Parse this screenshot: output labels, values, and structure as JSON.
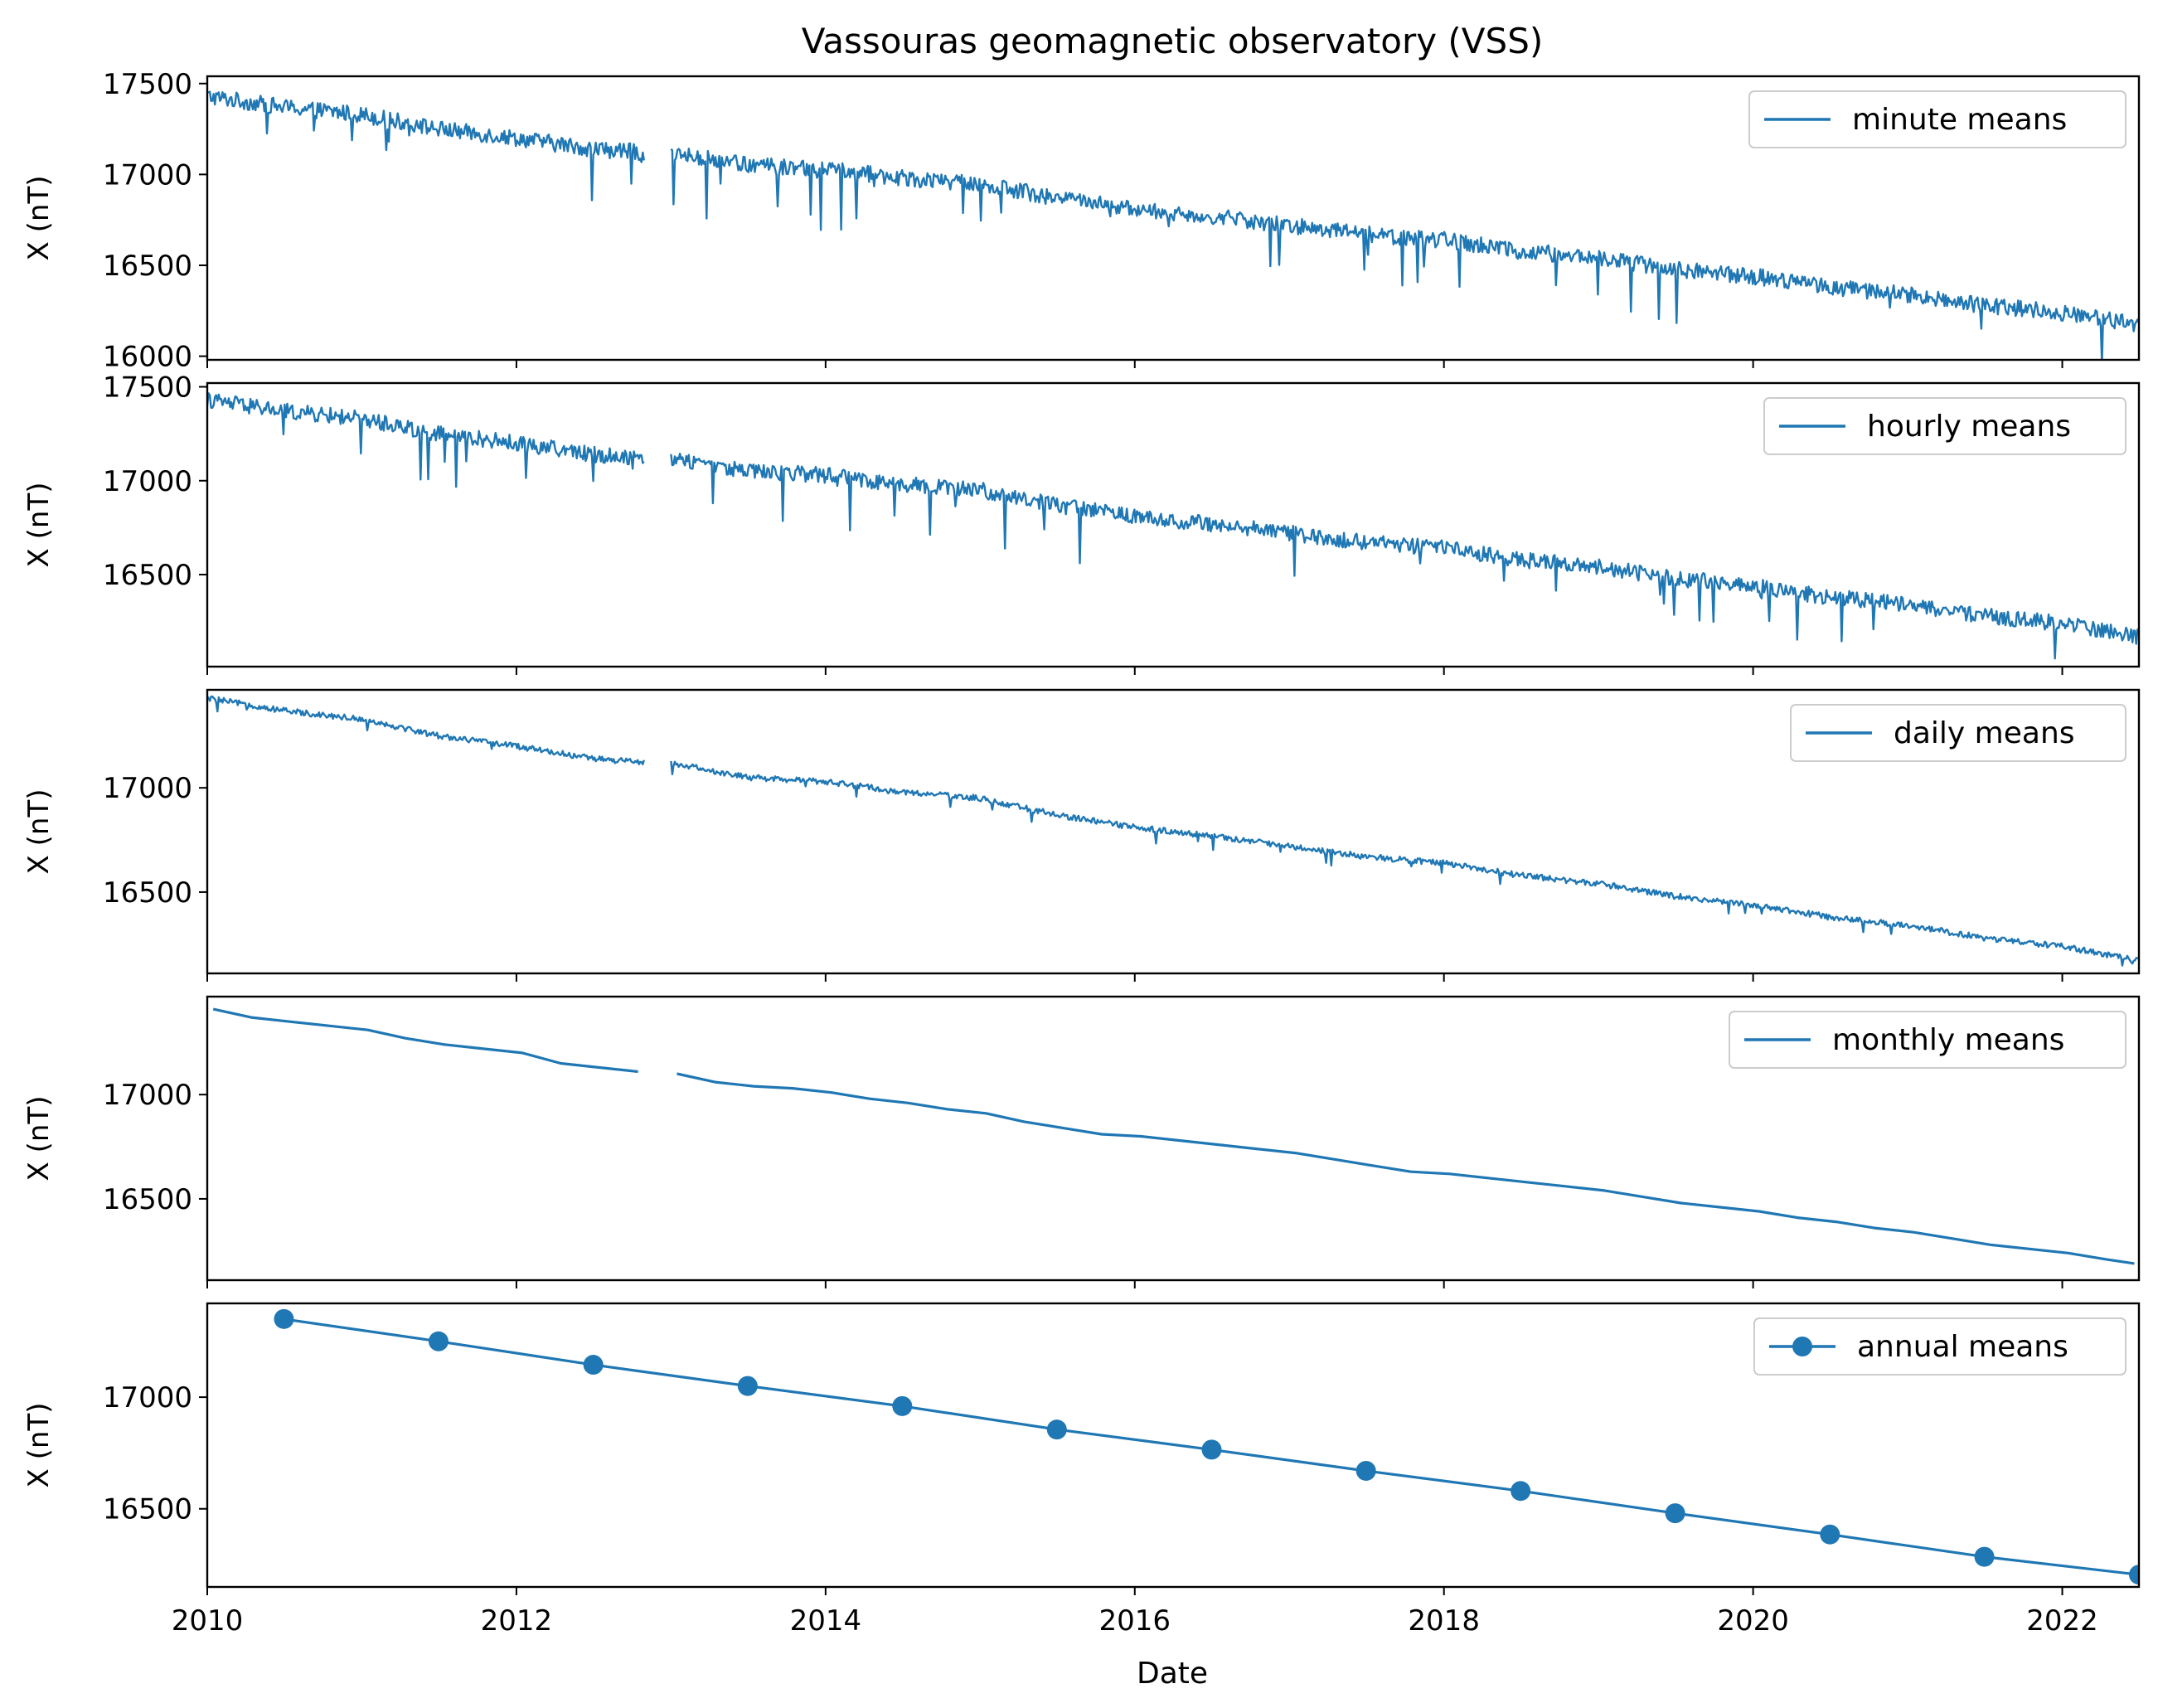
{
  "figure": {
    "title": "Vassouras geomagnetic observatory (VSS)",
    "xlabel": "Date",
    "x_tick_labels": [
      "2010",
      "2012",
      "2014",
      "2016",
      "2018",
      "2020",
      "2022"
    ],
    "line_color": "#1f77b4"
  },
  "chart_data": [
    {
      "type": "line",
      "panel": "minute",
      "ylabel": "X (nT)",
      "xlim": [
        "2010-01-01",
        "2022-07-01"
      ],
      "ylim": [
        15980,
        17540
      ],
      "yticks": [
        16000,
        16500,
        17000,
        17500
      ],
      "legend": {
        "label": "minute means",
        "placement": "top-right",
        "marker": false
      },
      "noise": {
        "amp": 45,
        "spike": 330,
        "prob": 0.035,
        "step_days": 3
      },
      "series": [
        {
          "name": "minute means",
          "segments": [
            {
              "x": [
                "2010-01-01",
                "2010-07-01",
                "2011-01-01",
                "2011-07-01",
                "2012-01-01",
                "2012-07-01",
                "2012-11-01"
              ],
              "y": [
                17430,
                17370,
                17330,
                17250,
                17200,
                17140,
                17120
              ]
            },
            {
              "x": [
                "2013-01-01",
                "2013-07-01",
                "2014-01-01",
                "2014-07-01",
                "2015-01-01",
                "2015-07-01",
                "2016-01-01",
                "2016-07-01",
                "2017-01-01",
                "2017-07-01",
                "2018-01-01",
                "2018-07-01",
                "2019-01-01",
                "2019-07-01",
                "2020-01-01",
                "2020-07-01",
                "2021-01-01",
                "2021-07-01",
                "2022-01-01",
                "2022-07-01"
              ],
              "y": [
                17120,
                17050,
                17030,
                16980,
                16950,
                16870,
                16810,
                16770,
                16720,
                16670,
                16640,
                16580,
                16540,
                16480,
                16440,
                16380,
                16340,
                16280,
                16240,
                16170
              ]
            }
          ]
        }
      ]
    },
    {
      "type": "line",
      "panel": "hourly",
      "ylabel": "X (nT)",
      "xlim": [
        "2010-01-01",
        "2022-07-01"
      ],
      "ylim": [
        16010,
        17520
      ],
      "yticks": [
        16500,
        17000,
        17500
      ],
      "legend": {
        "label": "hourly means",
        "placement": "top-right",
        "marker": false
      },
      "noise": {
        "amp": 42,
        "spike": 310,
        "prob": 0.035,
        "step_days": 3
      },
      "series": [
        {
          "name": "hourly means",
          "segments": [
            {
              "x": [
                "2010-01-01",
                "2010-07-01",
                "2011-01-01",
                "2011-07-01",
                "2012-01-01",
                "2012-07-01",
                "2012-11-01"
              ],
              "y": [
                17430,
                17370,
                17330,
                17250,
                17200,
                17140,
                17120
              ]
            },
            {
              "x": [
                "2013-01-01",
                "2013-07-01",
                "2014-01-01",
                "2014-07-01",
                "2015-01-01",
                "2015-07-01",
                "2016-01-01",
                "2016-07-01",
                "2017-01-01",
                "2017-07-01",
                "2018-01-01",
                "2018-07-01",
                "2019-01-01",
                "2019-07-01",
                "2020-01-01",
                "2020-07-01",
                "2021-01-01",
                "2021-07-01",
                "2022-01-01",
                "2022-07-01"
              ],
              "y": [
                17120,
                17050,
                17030,
                16980,
                16950,
                16870,
                16810,
                16770,
                16720,
                16670,
                16640,
                16580,
                16540,
                16480,
                16440,
                16380,
                16340,
                16280,
                16240,
                16170
              ]
            }
          ]
        }
      ]
    },
    {
      "type": "line",
      "panel": "daily",
      "ylabel": "X (nT)",
      "xlim": [
        "2010-01-01",
        "2022-07-01"
      ],
      "ylim": [
        16110,
        17470
      ],
      "yticks": [
        16500,
        17000
      ],
      "legend": {
        "label": "daily means",
        "placement": "top-right",
        "marker": false
      },
      "noise": {
        "amp": 14,
        "spike": 70,
        "prob": 0.03,
        "step_days": 3
      },
      "series": [
        {
          "name": "daily means",
          "segments": [
            {
              "x": [
                "2010-01-01",
                "2010-07-01",
                "2011-01-01",
                "2011-07-01",
                "2012-01-01",
                "2012-07-01",
                "2012-11-01"
              ],
              "y": [
                17430,
                17370,
                17330,
                17250,
                17200,
                17140,
                17120
              ]
            },
            {
              "x": [
                "2013-01-01",
                "2013-07-01",
                "2014-01-01",
                "2014-07-01",
                "2015-01-01",
                "2015-07-01",
                "2016-01-01",
                "2016-07-01",
                "2017-01-01",
                "2017-07-01",
                "2018-01-01",
                "2018-07-01",
                "2019-01-01",
                "2019-07-01",
                "2020-01-01",
                "2020-07-01",
                "2021-01-01",
                "2021-07-01",
                "2022-01-01",
                "2022-07-01"
              ],
              "y": [
                17120,
                17050,
                17030,
                16980,
                16950,
                16870,
                16810,
                16770,
                16720,
                16670,
                16640,
                16580,
                16540,
                16480,
                16440,
                16380,
                16340,
                16280,
                16240,
                16170
              ]
            }
          ]
        }
      ]
    },
    {
      "type": "line",
      "panel": "monthly",
      "ylabel": "X (nT)",
      "xlim": [
        "2010-01-01",
        "2022-07-01"
      ],
      "ylim": [
        16110,
        17470
      ],
      "yticks": [
        16500,
        17000
      ],
      "legend": {
        "label": "monthly means",
        "placement": "top-right",
        "marker": false
      },
      "series": [
        {
          "name": "monthly means",
          "segments": [
            {
              "x": [
                "2010-01-15",
                "2010-04-15",
                "2010-07-15",
                "2010-10-15",
                "2011-01-15",
                "2011-04-15",
                "2011-07-15",
                "2011-10-15",
                "2012-01-15",
                "2012-04-15",
                "2012-07-15",
                "2012-10-15"
              ],
              "y": [
                17410,
                17370,
                17350,
                17330,
                17310,
                17270,
                17240,
                17220,
                17200,
                17150,
                17130,
                17110
              ]
            },
            {
              "x": [
                "2013-01-15",
                "2013-04-15",
                "2013-07-15",
                "2013-10-15",
                "2014-01-15",
                "2014-04-15",
                "2014-07-15",
                "2014-10-15",
                "2015-01-15",
                "2015-04-15",
                "2015-07-15",
                "2015-10-15",
                "2016-01-15",
                "2016-04-15",
                "2016-07-15",
                "2016-10-15",
                "2017-01-15",
                "2017-04-15",
                "2017-07-15",
                "2017-10-15",
                "2018-01-15",
                "2018-04-15",
                "2018-07-15",
                "2018-10-15",
                "2019-01-15",
                "2019-04-15",
                "2019-07-15",
                "2019-10-15",
                "2020-01-15",
                "2020-04-15",
                "2020-07-15",
                "2020-10-15",
                "2021-01-15",
                "2021-04-15",
                "2021-07-15",
                "2021-10-15",
                "2022-01-15",
                "2022-04-15",
                "2022-06-20"
              ],
              "y": [
                17100,
                17060,
                17040,
                17030,
                17010,
                16980,
                16960,
                16930,
                16910,
                16870,
                16840,
                16810,
                16800,
                16780,
                16760,
                16740,
                16720,
                16690,
                16660,
                16630,
                16620,
                16600,
                16580,
                16560,
                16540,
                16510,
                16480,
                16460,
                16440,
                16410,
                16390,
                16360,
                16340,
                16310,
                16280,
                16260,
                16240,
                16210,
                16190
              ]
            }
          ]
        }
      ]
    },
    {
      "type": "line",
      "panel": "annual",
      "ylabel": "X (nT)",
      "xlim": [
        "2010-01-01",
        "2022-07-01"
      ],
      "ylim": [
        16150,
        17420
      ],
      "yticks": [
        16500,
        17000
      ],
      "legend": {
        "label": "annual means",
        "placement": "top-right",
        "marker": true
      },
      "series": [
        {
          "name": "annual means",
          "x": [
            "2010-07-01",
            "2011-07-01",
            "2012-07-01",
            "2013-07-01",
            "2014-07-01",
            "2015-07-01",
            "2016-07-01",
            "2017-07-01",
            "2018-07-01",
            "2019-07-01",
            "2020-07-01",
            "2021-07-01",
            "2022-07-01"
          ],
          "y": [
            17350,
            17250,
            17145,
            17050,
            16960,
            16855,
            16765,
            16670,
            16580,
            16480,
            16385,
            16285,
            16205
          ]
        }
      ]
    }
  ]
}
